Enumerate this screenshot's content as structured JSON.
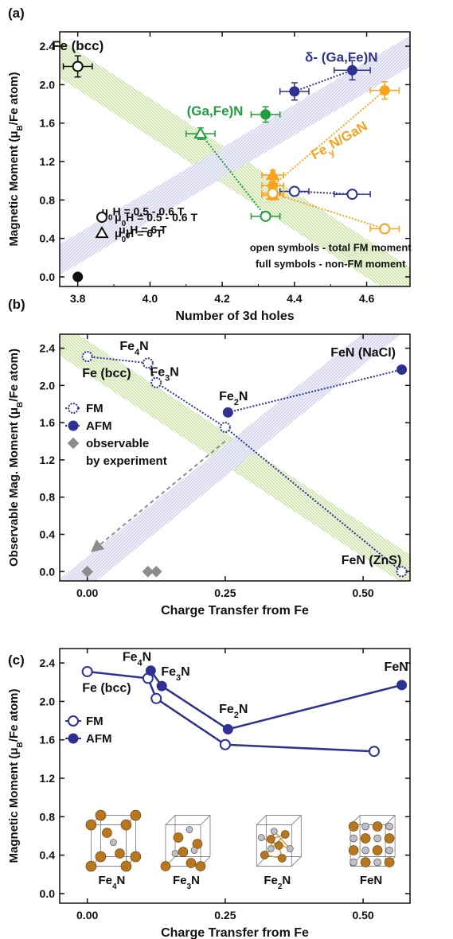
{
  "colors": {
    "navy": "#2e3192",
    "green": "#1f9e3e",
    "orange": "#f7a31b",
    "black": "#111111",
    "gray": "#8c8c8c",
    "band_green": "#d7e9b8",
    "band_lav": "#dcdcf0"
  },
  "chart_data": [
    {
      "panel": "(a)",
      "type": "scatter",
      "xlabel": "Number of 3d holes",
      "ylabel": "Magnetic Moment (μB/Fe atom)",
      "xlim": [
        3.75,
        4.72
      ],
      "ylim": [
        -0.1,
        2.55
      ],
      "xticks": [
        3.8,
        4.0,
        4.2,
        4.4,
        4.6
      ],
      "yticks": [
        0.0,
        0.4,
        0.8,
        1.2,
        1.6,
        2.0,
        2.4
      ],
      "series": [
        {
          "name": "Fe (bcc)",
          "color": "black",
          "marker": "circle-open",
          "points": [
            {
              "x": 3.8,
              "y": 2.19,
              "xerr": 0.04,
              "yerr": 0.11
            }
          ],
          "connect": false
        },
        {
          "name": "Fe (bcc)",
          "color": "black",
          "marker": "circle-full",
          "points": [
            {
              "x": 3.8,
              "y": 0.0
            }
          ],
          "connect": false
        },
        {
          "name": "δ- (Ga,Fe)N",
          "color": "navy",
          "marker": "circle-full",
          "points": [
            {
              "x": 4.4,
              "y": 1.93,
              "xerr": 0.04,
              "yerr": 0.09
            },
            {
              "x": 4.56,
              "y": 2.15,
              "xerr": 0.05,
              "yerr": 0.1
            }
          ],
          "connect": true
        },
        {
          "name": "δ- (Ga,Fe)N",
          "color": "navy",
          "marker": "circle-open",
          "points": [
            {
              "x": 4.4,
              "y": 0.89,
              "xerr": 0.04,
              "yerr": 0.03
            },
            {
              "x": 4.56,
              "y": 0.86,
              "xerr": 0.05,
              "yerr": 0.03
            }
          ],
          "connect": true
        },
        {
          "name": "(Ga,Fe)N",
          "color": "green",
          "marker": "circle-full",
          "points": [
            {
              "x": 4.32,
              "y": 1.69,
              "xerr": 0.04,
              "yerr": 0.08
            }
          ],
          "connect": false
        },
        {
          "name": "(Ga,Fe)N",
          "color": "green",
          "marker": "triangle-open",
          "points": [
            {
              "x": 4.14,
              "y": 1.49,
              "xerr": 0.04,
              "yerr": 0.06
            }
          ],
          "connect": false
        },
        {
          "name": "(Ga,Fe)N",
          "color": "green",
          "marker": "circle-open",
          "points": [
            {
              "x": 4.32,
              "y": 0.63,
              "xerr": 0.04,
              "yerr": 0.03
            }
          ],
          "connect": false
        },
        {
          "name": "FeyN/GaN",
          "color": "orange",
          "marker": "circle-full",
          "points": [
            {
              "x": 4.34,
              "y": 0.95,
              "xerr": 0.03,
              "yerr": 0.1
            },
            {
              "x": 4.65,
              "y": 1.94,
              "xerr": 0.04,
              "yerr": 0.09
            }
          ],
          "connect": true
        },
        {
          "name": "FeyN/GaN",
          "color": "orange",
          "marker": "triangle-full",
          "points": [
            {
              "x": 4.34,
              "y": 1.06,
              "xerr": 0.03,
              "yerr": 0.05
            },
            {
              "x": 4.34,
              "y": 0.85,
              "xerr": 0.03,
              "yerr": 0.05
            }
          ],
          "connect": false
        },
        {
          "name": "FeyN/GaN",
          "color": "orange",
          "marker": "circle-open",
          "points": [
            {
              "x": 4.34,
              "y": 0.87,
              "xerr": 0.03,
              "yerr": 0.03
            },
            {
              "x": 4.65,
              "y": 0.5,
              "xerr": 0.04,
              "yerr": 0.02
            }
          ],
          "connect": true
        }
      ],
      "links": [
        {
          "color": "green",
          "from": [
            4.14,
            1.49
          ],
          "to": [
            4.32,
            0.63
          ]
        }
      ],
      "bands": [
        {
          "type": "green",
          "from": [
            3.75,
            2.27
          ],
          "to": [
            4.72,
            -0.1
          ],
          "half_width": 0.2
        },
        {
          "type": "lavender",
          "from": [
            3.75,
            0.18
          ],
          "to": [
            4.72,
            2.35
          ],
          "half_width": 0.16
        }
      ],
      "labels": [
        {
          "text": "Fe (bcc)",
          "x": 3.8,
          "y": 2.36,
          "color": "black",
          "size": 17
        },
        {
          "text": "δ- (Ga,Fe)N",
          "x": 4.53,
          "y": 2.24,
          "color": "navy",
          "size": 17
        },
        {
          "text": "(Ga,Fe)N",
          "x": 4.18,
          "y": 1.68,
          "color": "green",
          "size": 17
        },
        {
          "text": "FeyN/GaN",
          "x": 4.53,
          "y": 1.38,
          "color": "orange",
          "size": 17,
          "rotate": -30
        },
        {
          "text": "μ0H = 0.5 - 0.6 T",
          "x": 3.98,
          "y": 0.64,
          "color": "black",
          "size": 14
        },
        {
          "text": "μ0H = 6 T",
          "x": 3.98,
          "y": 0.45,
          "color": "black",
          "size": 14
        },
        {
          "text": "open symbols - total FM moment",
          "x": 4.5,
          "y": 0.27,
          "color": "black",
          "size": 13
        },
        {
          "text": "full symbols - non-FM moment",
          "x": 4.5,
          "y": 0.1,
          "color": "black",
          "size": 13
        }
      ],
      "legend": [
        {
          "marker": "circle-open",
          "label": "μ0H = 0.5 - 0.6 T"
        },
        {
          "marker": "triangle-open",
          "label": "μ0H = 6 T"
        }
      ]
    },
    {
      "panel": "(b)",
      "type": "scatter",
      "xlabel": "Charge Transfer from Fe",
      "ylabel": "Observable Mag. Moment (μB/Fe atom)",
      "xlim": [
        -0.05,
        0.585
      ],
      "ylim": [
        -0.1,
        2.55
      ],
      "xticks": [
        0.0,
        0.25,
        0.5
      ],
      "xticklabels": [
        "0.00",
        "0.25",
        "0.50"
      ],
      "yticks": [
        0.0,
        0.4,
        0.8,
        1.2,
        1.6,
        2.0,
        2.4
      ],
      "series": [
        {
          "name": "FM",
          "color": "navy",
          "marker": "circle-dotted",
          "points": [
            {
              "x": 0.0,
              "y": 2.31
            },
            {
              "x": 0.11,
              "y": 2.24
            },
            {
              "x": 0.125,
              "y": 2.03
            },
            {
              "x": 0.25,
              "y": 1.55
            },
            {
              "x": 0.57,
              "y": 0.0
            }
          ],
          "connect": true,
          "dotted": true
        },
        {
          "name": "AFM",
          "color": "navy",
          "marker": "circle-full",
          "points": [
            {
              "x": 0.255,
              "y": 1.71
            },
            {
              "x": 0.57,
              "y": 2.17
            }
          ],
          "connect": true,
          "dotted": true
        },
        {
          "name": "observable by experiment",
          "color": "gray",
          "marker": "diamond",
          "points": [
            {
              "x": 0.0,
              "y": 0.0
            },
            {
              "x": 0.11,
              "y": 0.0
            },
            {
              "x": 0.125,
              "y": 0.0
            }
          ],
          "connect": false
        }
      ],
      "arrow": {
        "from": [
          0.25,
          1.4
        ],
        "to": [
          0.015,
          0.25
        ]
      },
      "bands": [
        {
          "type": "green",
          "from": [
            -0.05,
            2.5
          ],
          "to": [
            0.585,
            0.0
          ],
          "half_width": 0.18
        },
        {
          "type": "lavender",
          "from": [
            -0.05,
            -0.25
          ],
          "to": [
            0.585,
            2.8
          ],
          "half_width": 0.17
        }
      ],
      "labels": [
        {
          "text": "Fe4N",
          "x": 0.085,
          "y": 2.38,
          "color": "black",
          "size": 16
        },
        {
          "text": "Fe (bcc)",
          "x": 0.035,
          "y": 2.09,
          "color": "black",
          "size": 16
        },
        {
          "text": "Fe3N",
          "x": 0.14,
          "y": 2.1,
          "color": "black",
          "size": 16
        },
        {
          "text": "Fe2N",
          "x": 0.265,
          "y": 1.84,
          "color": "black",
          "size": 16
        },
        {
          "text": "FeN (NaCl)",
          "x": 0.5,
          "y": 2.31,
          "color": "black",
          "size": 16
        },
        {
          "text": "FeN (ZnS)",
          "x": 0.515,
          "y": 0.08,
          "color": "black",
          "size": 16
        }
      ],
      "legend": [
        {
          "marker": "circle-dotted",
          "label": "FM"
        },
        {
          "marker": "circle-full",
          "label": "AFM"
        },
        {
          "marker": "diamond",
          "label": "observable"
        },
        {
          "marker": "none",
          "label": "by experiment"
        }
      ]
    },
    {
      "panel": "(c)",
      "type": "line",
      "xlabel": "Charge Transfer from Fe",
      "ylabel": "Magnetic Moment (μB/Fe atom)",
      "xlim": [
        -0.05,
        0.585
      ],
      "ylim": [
        -0.1,
        2.55
      ],
      "xticks": [
        0.0,
        0.25,
        0.5
      ],
      "xticklabels": [
        "0.00",
        "0.25",
        "0.50"
      ],
      "yticks": [
        0.0,
        0.4,
        0.8,
        1.2,
        1.6,
        2.0,
        2.4
      ],
      "series": [
        {
          "name": "FM",
          "color": "navy",
          "marker": "circle-open",
          "points": [
            {
              "x": 0.0,
              "y": 2.31
            },
            {
              "x": 0.11,
              "y": 2.24
            },
            {
              "x": 0.125,
              "y": 2.03
            },
            {
              "x": 0.25,
              "y": 1.55
            },
            {
              "x": 0.52,
              "y": 1.48
            }
          ],
          "connect": true
        },
        {
          "name": "AFM",
          "color": "navy",
          "marker": "circle-full",
          "points": [
            {
              "x": 0.115,
              "y": 2.32
            },
            {
              "x": 0.135,
              "y": 2.16
            },
            {
              "x": 0.255,
              "y": 1.71
            },
            {
              "x": 0.57,
              "y": 2.17
            }
          ],
          "connect": true
        }
      ],
      "labels": [
        {
          "text": "Fe4N",
          "x": 0.09,
          "y": 2.42,
          "color": "black",
          "size": 16
        },
        {
          "text": "Fe (bcc)",
          "x": 0.035,
          "y": 2.1,
          "color": "black",
          "size": 16
        },
        {
          "text": "Fe3N",
          "x": 0.16,
          "y": 2.27,
          "color": "black",
          "size": 16
        },
        {
          "text": "Fe2N",
          "x": 0.265,
          "y": 1.88,
          "color": "black",
          "size": 16
        },
        {
          "text": "FeN",
          "x": 0.56,
          "y": 2.32,
          "color": "black",
          "size": 16
        }
      ],
      "legend": [
        {
          "marker": "circle-open",
          "label": "FM"
        },
        {
          "marker": "circle-full",
          "label": "AFM"
        }
      ],
      "structures": [
        {
          "name": "Fe4N",
          "x": 0.03
        },
        {
          "name": "Fe3N",
          "x": 0.165
        },
        {
          "name": "Fe2N",
          "x": 0.33
        },
        {
          "name": "FeN",
          "x": 0.5
        }
      ]
    }
  ]
}
